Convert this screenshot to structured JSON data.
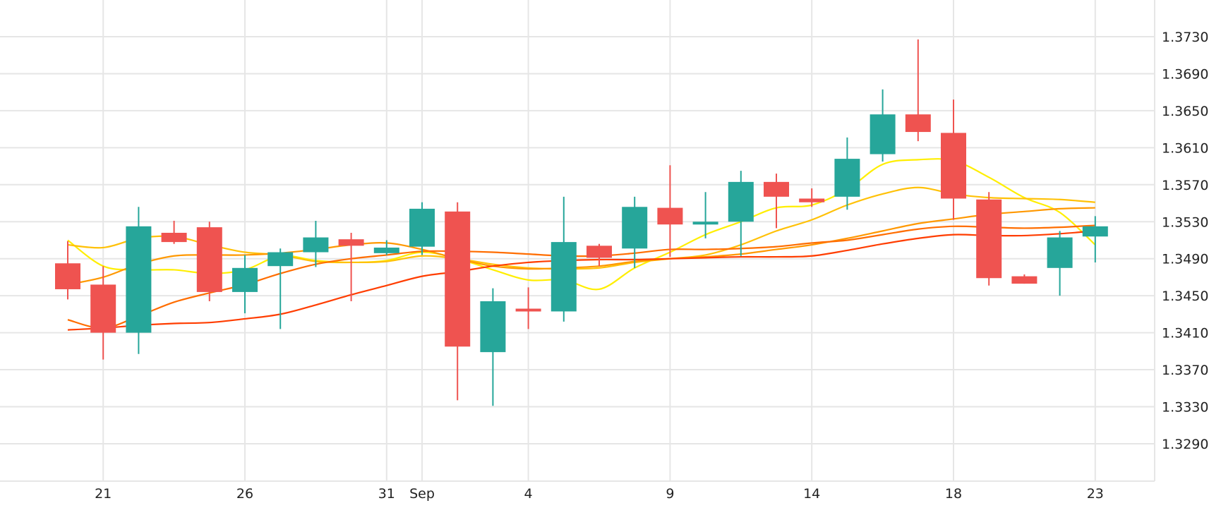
{
  "chart_data": {
    "type": "candlestick",
    "title": "",
    "xlabel": "",
    "ylabel": "",
    "ylim": [
      1.3245,
      1.377
    ],
    "grid": true,
    "y_ticks": [
      "1.3730",
      "1.3690",
      "1.3650",
      "1.3610",
      "1.3570",
      "1.3530",
      "1.3490",
      "1.3450",
      "1.3410",
      "1.3370",
      "1.3330",
      "1.3290"
    ],
    "x_tick_labels": [
      {
        "index": 1,
        "label": "21"
      },
      {
        "index": 5,
        "label": "26"
      },
      {
        "index": 9,
        "label": "31"
      },
      {
        "index": 10,
        "label": "Sep"
      },
      {
        "index": 13,
        "label": "4"
      },
      {
        "index": 17,
        "label": "9"
      },
      {
        "index": 21,
        "label": "14"
      },
      {
        "index": 25,
        "label": "18"
      },
      {
        "index": 29,
        "label": "23"
      }
    ],
    "colors": {
      "up": "#26a69a",
      "down": "#ef5350",
      "grid": "#e6e6e6"
    },
    "candles": [
      {
        "o": 1.3485,
        "h": 1.3509,
        "l": 1.3446,
        "c": 1.3457
      },
      {
        "o": 1.3462,
        "h": 1.3482,
        "l": 1.3381,
        "c": 1.341
      },
      {
        "o": 1.341,
        "h": 1.3546,
        "l": 1.3387,
        "c": 1.3525
      },
      {
        "o": 1.3518,
        "h": 1.3531,
        "l": 1.3506,
        "c": 1.3508
      },
      {
        "o": 1.3524,
        "h": 1.353,
        "l": 1.3444,
        "c": 1.3454
      },
      {
        "o": 1.3454,
        "h": 1.3494,
        "l": 1.3431,
        "c": 1.348
      },
      {
        "o": 1.3482,
        "h": 1.3501,
        "l": 1.3414,
        "c": 1.3497
      },
      {
        "o": 1.3497,
        "h": 1.3531,
        "l": 1.3481,
        "c": 1.3513
      },
      {
        "o": 1.3511,
        "h": 1.3518,
        "l": 1.3444,
        "c": 1.3504
      },
      {
        "o": 1.3496,
        "h": 1.351,
        "l": 1.3494,
        "c": 1.3502
      },
      {
        "o": 1.3503,
        "h": 1.3551,
        "l": 1.3494,
        "c": 1.3544
      },
      {
        "o": 1.3541,
        "h": 1.3551,
        "l": 1.3337,
        "c": 1.3395
      },
      {
        "o": 1.3389,
        "h": 1.3458,
        "l": 1.3331,
        "c": 1.3444
      },
      {
        "o": 1.3436,
        "h": 1.3459,
        "l": 1.3414,
        "c": 1.3433
      },
      {
        "o": 1.3433,
        "h": 1.3557,
        "l": 1.3422,
        "c": 1.3508
      },
      {
        "o": 1.3504,
        "h": 1.3506,
        "l": 1.3482,
        "c": 1.3491
      },
      {
        "o": 1.3501,
        "h": 1.3557,
        "l": 1.348,
        "c": 1.3546
      },
      {
        "o": 1.3545,
        "h": 1.3591,
        "l": 1.3492,
        "c": 1.3527
      },
      {
        "o": 1.3528,
        "h": 1.3562,
        "l": 1.3512,
        "c": 1.353
      },
      {
        "o": 1.353,
        "h": 1.3585,
        "l": 1.3493,
        "c": 1.3573
      },
      {
        "o": 1.3573,
        "h": 1.3582,
        "l": 1.3523,
        "c": 1.3557
      },
      {
        "o": 1.3555,
        "h": 1.3566,
        "l": 1.3546,
        "c": 1.3551
      },
      {
        "o": 1.3557,
        "h": 1.3621,
        "l": 1.3543,
        "c": 1.3598
      },
      {
        "o": 1.3603,
        "h": 1.3673,
        "l": 1.3595,
        "c": 1.3646
      },
      {
        "o": 1.3646,
        "h": 1.3727,
        "l": 1.3617,
        "c": 1.3627
      },
      {
        "o": 1.3626,
        "h": 1.3662,
        "l": 1.3532,
        "c": 1.3555
      },
      {
        "o": 1.3554,
        "h": 1.3562,
        "l": 1.3461,
        "c": 1.3469
      },
      {
        "o": 1.3471,
        "h": 1.3473,
        "l": 1.3463,
        "c": 1.3463
      },
      {
        "o": 1.348,
        "h": 1.352,
        "l": 1.345,
        "c": 1.3513
      },
      {
        "o": 1.3514,
        "h": 1.3536,
        "l": 1.3486,
        "c": 1.3525
      }
    ],
    "series": [
      {
        "name": "ma-yellow",
        "color": "#ffee00",
        "values": [
          1.351,
          1.3482,
          1.3478,
          1.3478,
          1.3474,
          1.3478,
          1.3493,
          1.3488,
          1.3486,
          1.3488,
          1.3497,
          1.349,
          1.3478,
          1.3467,
          1.3467,
          1.3457,
          1.348,
          1.3497,
          1.3516,
          1.353,
          1.3545,
          1.3548,
          1.3565,
          1.3592,
          1.3597,
          1.3596,
          1.3578,
          1.3556,
          1.354,
          1.3505
        ]
      },
      {
        "name": "ma-gold",
        "color": "#ffc107",
        "values": [
          1.3505,
          1.3502,
          1.3512,
          1.3514,
          1.3505,
          1.3497,
          1.3494,
          1.3487,
          1.3486,
          1.3487,
          1.3493,
          1.349,
          1.3484,
          1.348,
          1.3479,
          1.348,
          1.3486,
          1.349,
          1.3494,
          1.3505,
          1.352,
          1.3532,
          1.3548,
          1.356,
          1.3567,
          1.356,
          1.3556,
          1.3555,
          1.3554,
          1.3551
        ]
      },
      {
        "name": "ma-orange",
        "color": "#ff9800",
        "values": [
          1.3462,
          1.347,
          1.3484,
          1.3493,
          1.3494,
          1.3494,
          1.3496,
          1.35,
          1.3505,
          1.3507,
          1.35,
          1.349,
          1.3482,
          1.3479,
          1.348,
          1.3482,
          1.3487,
          1.349,
          1.3492,
          1.3495,
          1.35,
          1.3505,
          1.3512,
          1.352,
          1.3528,
          1.3533,
          1.3538,
          1.3541,
          1.3544,
          1.3545
        ]
      },
      {
        "name": "ma-red-orange",
        "color": "#ff6d00",
        "values": [
          1.3424,
          1.3415,
          1.3428,
          1.3443,
          1.3453,
          1.3462,
          1.3474,
          1.3484,
          1.349,
          1.3494,
          1.3498,
          1.3498,
          1.3497,
          1.3495,
          1.3493,
          1.3493,
          1.3496,
          1.35,
          1.35,
          1.3501,
          1.3503,
          1.3507,
          1.351,
          1.3516,
          1.3522,
          1.3525,
          1.3524,
          1.3523,
          1.3524,
          1.3526
        ]
      },
      {
        "name": "ma-red",
        "color": "#ff3d00",
        "values": [
          1.3413,
          1.3415,
          1.3418,
          1.342,
          1.3421,
          1.3425,
          1.343,
          1.344,
          1.3451,
          1.3461,
          1.3471,
          1.3476,
          1.3482,
          1.3486,
          1.3488,
          1.3489,
          1.3489,
          1.349,
          1.3491,
          1.3492,
          1.3492,
          1.3493,
          1.3499,
          1.3506,
          1.3512,
          1.3516,
          1.3515,
          1.3515,
          1.3517,
          1.352
        ]
      }
    ]
  }
}
